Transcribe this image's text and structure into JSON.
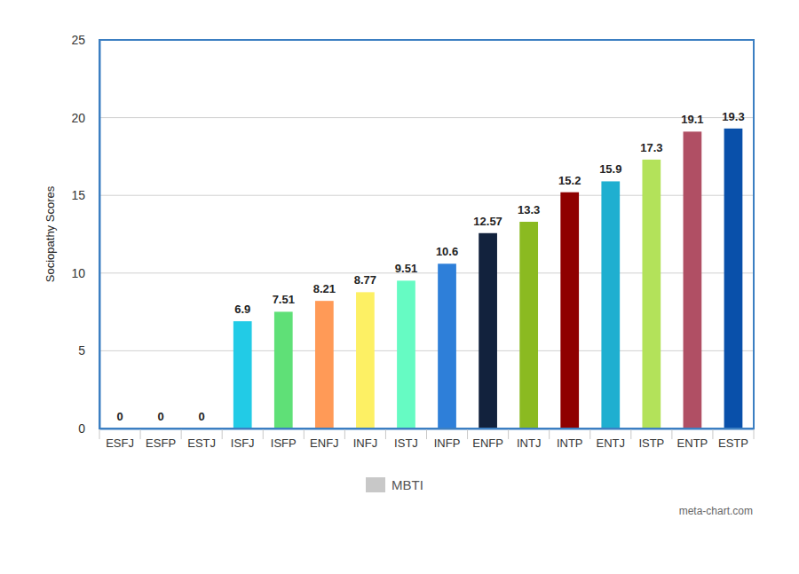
{
  "chart_data": {
    "type": "bar",
    "y_label": "Sociopathy Scores",
    "categories": [
      "ESFJ",
      "ESFP",
      "ESTJ",
      "ISFJ",
      "ISFP",
      "ENFJ",
      "INFJ",
      "ISTJ",
      "INFP",
      "ENFP",
      "INTJ",
      "INTP",
      "ENTJ",
      "ISTP",
      "ENTP",
      "ESTP"
    ],
    "series": [
      {
        "name": "MBTI",
        "color": "#c8c8c8",
        "colors": [
          "#3366cc",
          "#dc3912",
          "#ff9900",
          "#22cbe6",
          "#5fe077",
          "#ff9a57",
          "#fdf064",
          "#66fbc3",
          "#2e7fd9",
          "#12223d",
          "#8bba21",
          "#8f0000",
          "#1fafd0",
          "#b3e25a",
          "#b04f64",
          "#0950aa"
        ],
        "values": [
          0,
          0,
          0,
          6.9,
          7.51,
          8.21,
          8.77,
          9.51,
          10.6,
          12.57,
          13.3,
          15.2,
          15.9,
          17.3,
          19.1,
          19.3
        ]
      }
    ],
    "ylim": [
      0,
      25
    ],
    "yticks": [
      0,
      5,
      10,
      15,
      20,
      25
    ],
    "grid": true,
    "data_labels": true,
    "legend": "bottom",
    "annotations": [
      "meta-chart.com"
    ]
  }
}
